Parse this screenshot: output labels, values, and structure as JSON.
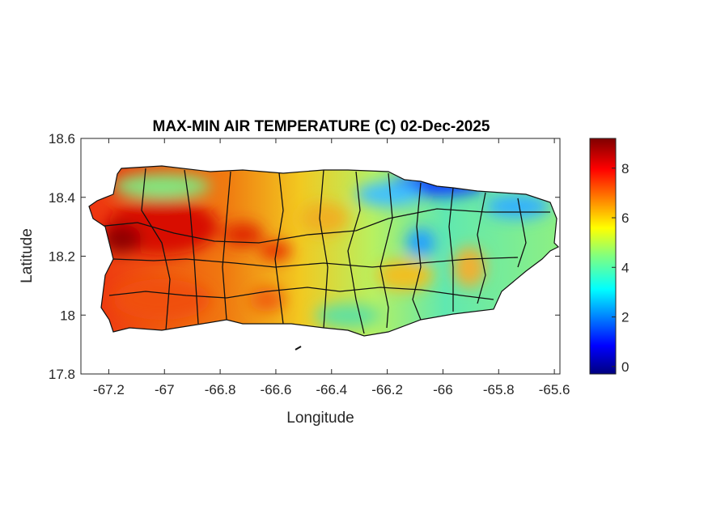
{
  "chart_data": {
    "type": "heatmap",
    "title": "MAX-MIN AIR TEMPERATURE (C) 02-Dec-2025",
    "xlabel": "Longitude",
    "ylabel": "Latitude",
    "xlim": [
      -67.3,
      -65.58
    ],
    "ylim": [
      17.8,
      18.6
    ],
    "xticks": [
      -67.2,
      -67,
      -66.8,
      -66.6,
      -66.4,
      -66.2,
      -66,
      -65.8,
      -65.6
    ],
    "xtick_labels": [
      "-67.2",
      "-67",
      "-66.8",
      "-66.6",
      "-66.4",
      "-66.2",
      "-66",
      "-65.8",
      "-65.6"
    ],
    "yticks": [
      17.8,
      18,
      18.2,
      18.4,
      18.6
    ],
    "ytick_labels": [
      "17.8",
      "18",
      "18.2",
      "18.4",
      "18.6"
    ],
    "colorbar": {
      "colormap": "jet",
      "clim": [
        -0.3,
        9.2
      ],
      "ticks": [
        0,
        2,
        4,
        6,
        8
      ],
      "tick_labels": [
        "0",
        "2",
        "4",
        "6",
        "8"
      ]
    },
    "summary": {
      "west_max": 9,
      "northeast_min": 1,
      "typical_east": 4.5,
      "typical_central": 6
    }
  }
}
